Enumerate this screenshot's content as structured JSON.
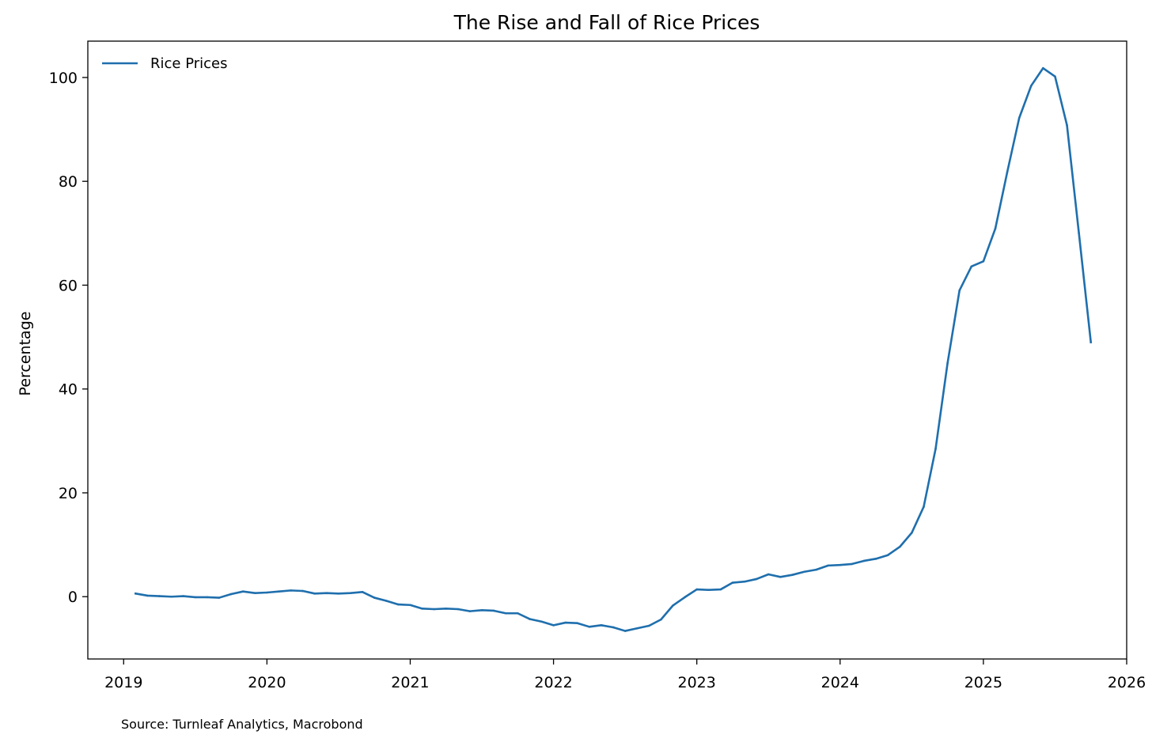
{
  "chart_data": {
    "type": "line",
    "title": "The Rise and Fall of Rice Prices",
    "xlabel": "",
    "ylabel": "Percentage",
    "source": "Source: Turnleaf Analytics, Macrobond",
    "xlim": [
      "2018-10-01",
      "2026-01-01"
    ],
    "ylim": [
      -12,
      107
    ],
    "x_ticks": [
      "2019",
      "2020",
      "2021",
      "2022",
      "2023",
      "2024",
      "2025",
      "2026"
    ],
    "y_ticks": [
      0,
      20,
      40,
      60,
      80,
      100
    ],
    "legend": {
      "position": "upper-left",
      "entries": [
        "Rice Prices"
      ]
    },
    "grid": false,
    "series": [
      {
        "name": "Rice Prices",
        "color": "#1f6fad",
        "points": [
          [
            "2019-02",
            0.6
          ],
          [
            "2019-03",
            0.2
          ],
          [
            "2019-04",
            0.1
          ],
          [
            "2019-05",
            0.0
          ],
          [
            "2019-06",
            0.1
          ],
          [
            "2019-07",
            -0.1
          ],
          [
            "2019-08",
            -0.1
          ],
          [
            "2019-09",
            -0.2
          ],
          [
            "2019-10",
            0.5
          ],
          [
            "2019-11",
            1.0
          ],
          [
            "2019-12",
            0.7
          ],
          [
            "2020-01",
            0.8
          ],
          [
            "2020-02",
            1.0
          ],
          [
            "2020-03",
            1.2
          ],
          [
            "2020-04",
            1.1
          ],
          [
            "2020-05",
            0.6
          ],
          [
            "2020-06",
            0.7
          ],
          [
            "2020-07",
            0.6
          ],
          [
            "2020-08",
            0.7
          ],
          [
            "2020-09",
            0.9
          ],
          [
            "2020-10",
            -0.2
          ],
          [
            "2020-11",
            -0.8
          ],
          [
            "2020-12",
            -1.5
          ],
          [
            "2021-01",
            -1.6
          ],
          [
            "2021-02",
            -2.3
          ],
          [
            "2021-03",
            -2.4
          ],
          [
            "2021-04",
            -2.3
          ],
          [
            "2021-05",
            -2.4
          ],
          [
            "2021-06",
            -2.8
          ],
          [
            "2021-07",
            -2.6
          ],
          [
            "2021-08",
            -2.7
          ],
          [
            "2021-09",
            -3.2
          ],
          [
            "2021-10",
            -3.2
          ],
          [
            "2021-11",
            -4.3
          ],
          [
            "2021-12",
            -4.8
          ],
          [
            "2022-01",
            -5.5
          ],
          [
            "2022-02",
            -5.0
          ],
          [
            "2022-03",
            -5.1
          ],
          [
            "2022-04",
            -5.8
          ],
          [
            "2022-05",
            -5.5
          ],
          [
            "2022-06",
            -5.9
          ],
          [
            "2022-07",
            -6.6
          ],
          [
            "2022-08",
            -6.1
          ],
          [
            "2022-09",
            -5.6
          ],
          [
            "2022-10",
            -4.4
          ],
          [
            "2022-11",
            -1.7
          ],
          [
            "2022-12",
            -0.1
          ],
          [
            "2023-01",
            1.4
          ],
          [
            "2023-02",
            1.3
          ],
          [
            "2023-03",
            1.4
          ],
          [
            "2023-04",
            2.7
          ],
          [
            "2023-05",
            2.9
          ],
          [
            "2023-06",
            3.4
          ],
          [
            "2023-07",
            4.3
          ],
          [
            "2023-08",
            3.8
          ],
          [
            "2023-09",
            4.2
          ],
          [
            "2023-10",
            4.8
          ],
          [
            "2023-11",
            5.2
          ],
          [
            "2023-12",
            6.0
          ],
          [
            "2024-01",
            6.1
          ],
          [
            "2024-02",
            6.3
          ],
          [
            "2024-03",
            6.9
          ],
          [
            "2024-04",
            7.3
          ],
          [
            "2024-05",
            8.0
          ],
          [
            "2024-06",
            9.6
          ],
          [
            "2024-07",
            12.3
          ],
          [
            "2024-08",
            17.3
          ],
          [
            "2024-09",
            28.5
          ],
          [
            "2024-10",
            45.0
          ],
          [
            "2024-11",
            59.0
          ],
          [
            "2024-12",
            63.6
          ],
          [
            "2025-01",
            64.6
          ],
          [
            "2025-02",
            70.9
          ],
          [
            "2025-03",
            81.8
          ],
          [
            "2025-04",
            92.2
          ],
          [
            "2025-05",
            98.4
          ],
          [
            "2025-06",
            101.8
          ],
          [
            "2025-07",
            100.2
          ],
          [
            "2025-08",
            90.8
          ],
          [
            "2025-09",
            70.0
          ],
          [
            "2025-10",
            49.0
          ]
        ]
      }
    ]
  }
}
